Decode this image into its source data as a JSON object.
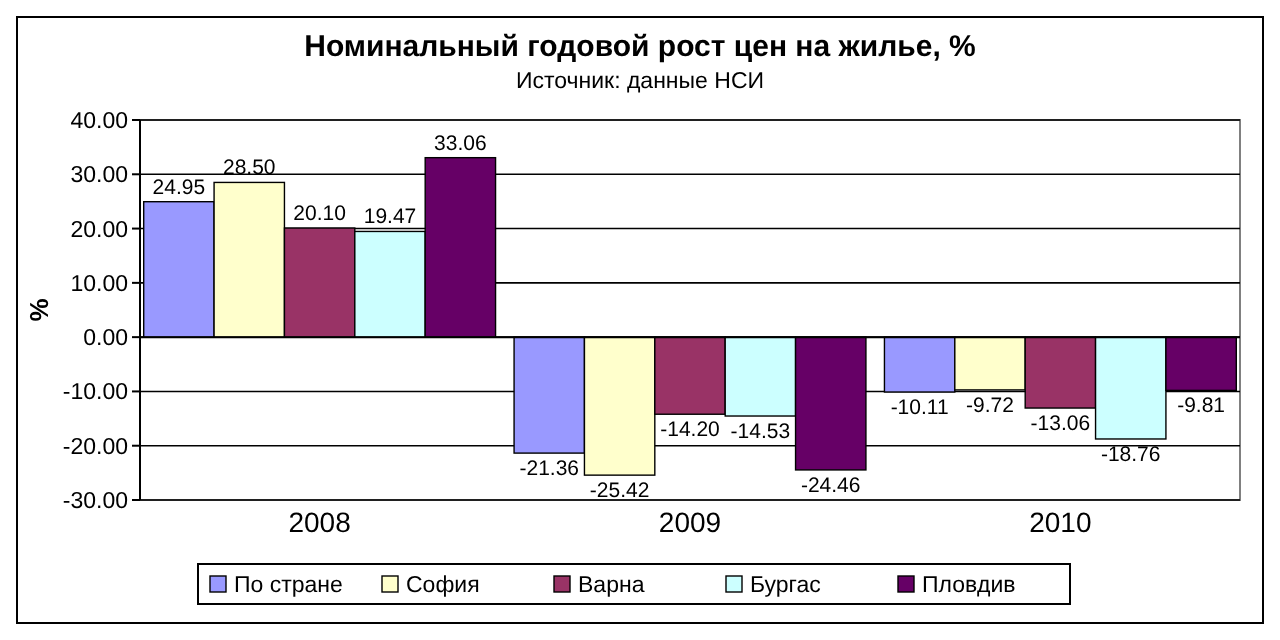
{
  "chart_data": {
    "type": "bar",
    "title": "Номинальный годовой рост цен на жилье, %",
    "subtitle": "Источник: данные НСИ",
    "ylabel": "%",
    "categories": [
      "2008",
      "2009",
      "2010"
    ],
    "series": [
      {
        "name": "По стране",
        "color": "#9999ff",
        "values": [
          24.95,
          -21.36,
          -10.11
        ],
        "value_labels": [
          "24.95",
          "-21.36",
          "-10.11"
        ]
      },
      {
        "name": "София",
        "color": "#ffffcc",
        "values": [
          28.5,
          -25.42,
          -9.72
        ],
        "value_labels": [
          "28.50",
          "-25.42",
          "-9.72"
        ]
      },
      {
        "name": "Варна",
        "color": "#993366",
        "values": [
          20.1,
          -14.2,
          -13.06
        ],
        "value_labels": [
          "20.10",
          "-14.20",
          "-13.06"
        ]
      },
      {
        "name": "Бургас",
        "color": "#ccffff",
        "values": [
          19.47,
          -14.53,
          -18.76
        ],
        "value_labels": [
          "19.47",
          "-14.53",
          "-18.76"
        ]
      },
      {
        "name": "Пловдив",
        "color": "#660066",
        "values": [
          33.06,
          -24.46,
          -9.81
        ],
        "value_labels": [
          "33.06",
          "-24.46",
          "-9.81"
        ]
      }
    ],
    "ylim": [
      -30,
      40
    ],
    "yticks": [
      {
        "value": -30,
        "label": "-30.00"
      },
      {
        "value": -20,
        "label": "-20.00"
      },
      {
        "value": -10,
        "label": "-10.00"
      },
      {
        "value": 0,
        "label": "0.00"
      },
      {
        "value": 10,
        "label": "10.00"
      },
      {
        "value": 20,
        "label": "20.00"
      },
      {
        "value": 30,
        "label": "30.00"
      },
      {
        "value": 40,
        "label": "40.00"
      }
    ],
    "grid": "y",
    "legend": "bottom"
  }
}
